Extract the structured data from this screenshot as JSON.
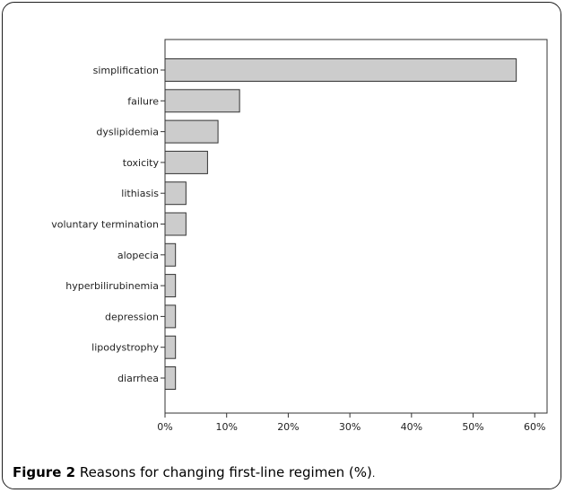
{
  "caption": {
    "label": "Figure 2",
    "text": "Reasons for changing first-line regimen (%)",
    "end": "."
  },
  "chart_data": {
    "type": "bar",
    "orientation": "horizontal",
    "categories": [
      "simplification",
      "failure",
      "dyslipidemia",
      "toxicity",
      "lithiasis",
      "voluntary termination",
      "alopecia",
      "hyperbilirubinemia",
      "depression",
      "lipodystrophy",
      "diarrhea"
    ],
    "values": [
      57,
      12.1,
      8.6,
      6.9,
      3.4,
      3.4,
      1.7,
      1.7,
      1.7,
      1.7,
      1.7
    ],
    "xlim": [
      0,
      62
    ],
    "x_ticks": [
      0,
      10,
      20,
      30,
      40,
      50,
      60
    ],
    "x_tick_labels": [
      "0%",
      "10%",
      "20%",
      "30%",
      "40%",
      "50%",
      "60%"
    ],
    "bar_color": "#cccccc",
    "bar_edge_color": "#333333",
    "grid": false,
    "legend": false,
    "title": "",
    "xlabel": "",
    "ylabel": ""
  }
}
